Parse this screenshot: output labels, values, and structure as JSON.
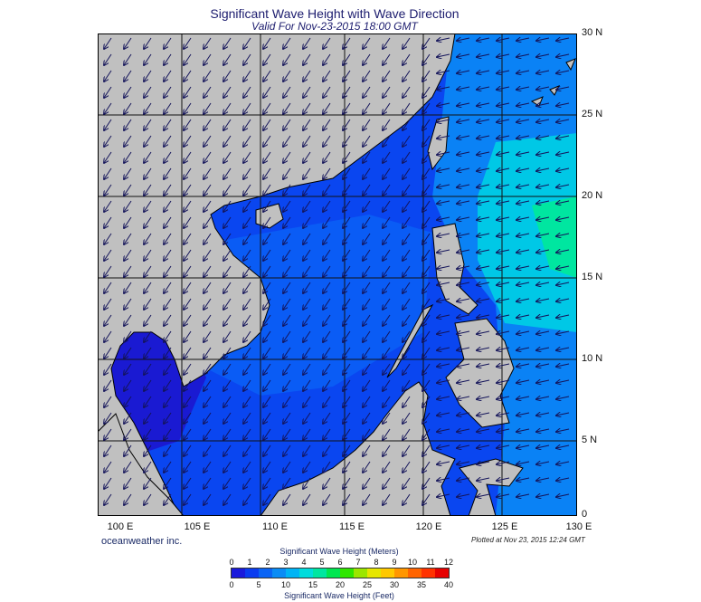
{
  "header": {
    "title": "Significant Wave Height with Wave Direction",
    "subtitle": "Valid For Nov-23-2015 18:00 GMT"
  },
  "map": {
    "lat_labels": [
      "30 N",
      "25 N",
      "20 N",
      "15 N",
      "10 N",
      "5 N",
      "0"
    ],
    "lon_labels": [
      "100 E",
      "105 E",
      "110 E",
      "115 E",
      "120 E",
      "125 E",
      "130 E"
    ],
    "land_color": "#c0c0c0",
    "wave_direction": "mostly toward southwest"
  },
  "footer": {
    "credit": "oceanweather inc.",
    "plotted": "Plotted at Nov 23, 2015 12:24 GMT"
  },
  "colorbar": {
    "title_meters": "Significant Wave Height (Meters)",
    "title_feet": "Significant Wave Height (Feet)",
    "meters_ticks": [
      "0",
      "1",
      "2",
      "3",
      "4",
      "5",
      "6",
      "7",
      "8",
      "9",
      "10",
      "11",
      "12"
    ],
    "feet_ticks": [
      "0",
      "5",
      "10",
      "15",
      "20",
      "25",
      "30",
      "35",
      "40"
    ],
    "colors": [
      "#1a1adc",
      "#0a3cf0",
      "#0a64f5",
      "#0a8cf5",
      "#00b4f5",
      "#00dcdc",
      "#00e6a0",
      "#00e650",
      "#30e600",
      "#9be600",
      "#e6e600",
      "#ffc800",
      "#ff9600",
      "#ff6400",
      "#ff3200",
      "#e60000"
    ]
  }
}
